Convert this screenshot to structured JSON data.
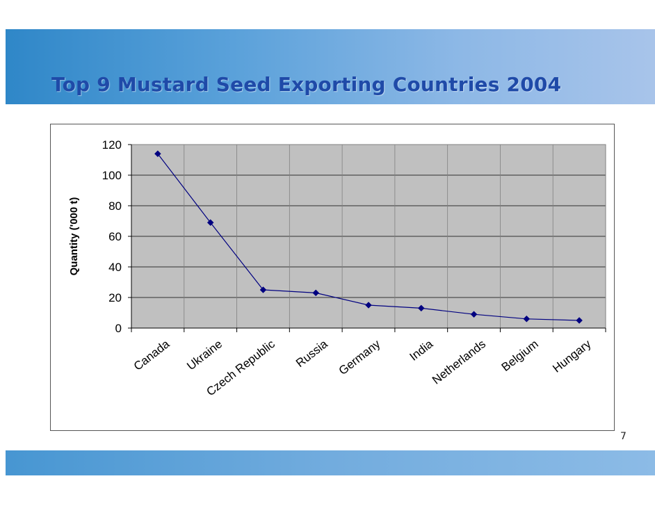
{
  "slide": {
    "title": "Top 9 Mustard Seed Exporting Countries 2004",
    "page_number": "7"
  },
  "colors": {
    "header_band": "#5aa1da",
    "title_text": "#1f4aa8",
    "plot_background": "#c0c0c0",
    "series_line": "#000080",
    "footer_band": "#72acde"
  },
  "chart_data": {
    "type": "line",
    "title": "",
    "xlabel": "",
    "ylabel": "Quantity ('000 t)",
    "categories": [
      "Canada",
      "Ukraine",
      "Czech Republic",
      "Russia",
      "Germany",
      "India",
      "Netherlands",
      "Belgium",
      "Hungary"
    ],
    "series": [
      {
        "name": "Quantity",
        "values": [
          114,
          69,
          25,
          23,
          15,
          13,
          9,
          6,
          5
        ]
      }
    ],
    "ylim": [
      0,
      120
    ],
    "yticks": [
      0,
      20,
      40,
      60,
      80,
      100,
      120
    ],
    "grid": true,
    "marker": "diamond"
  }
}
